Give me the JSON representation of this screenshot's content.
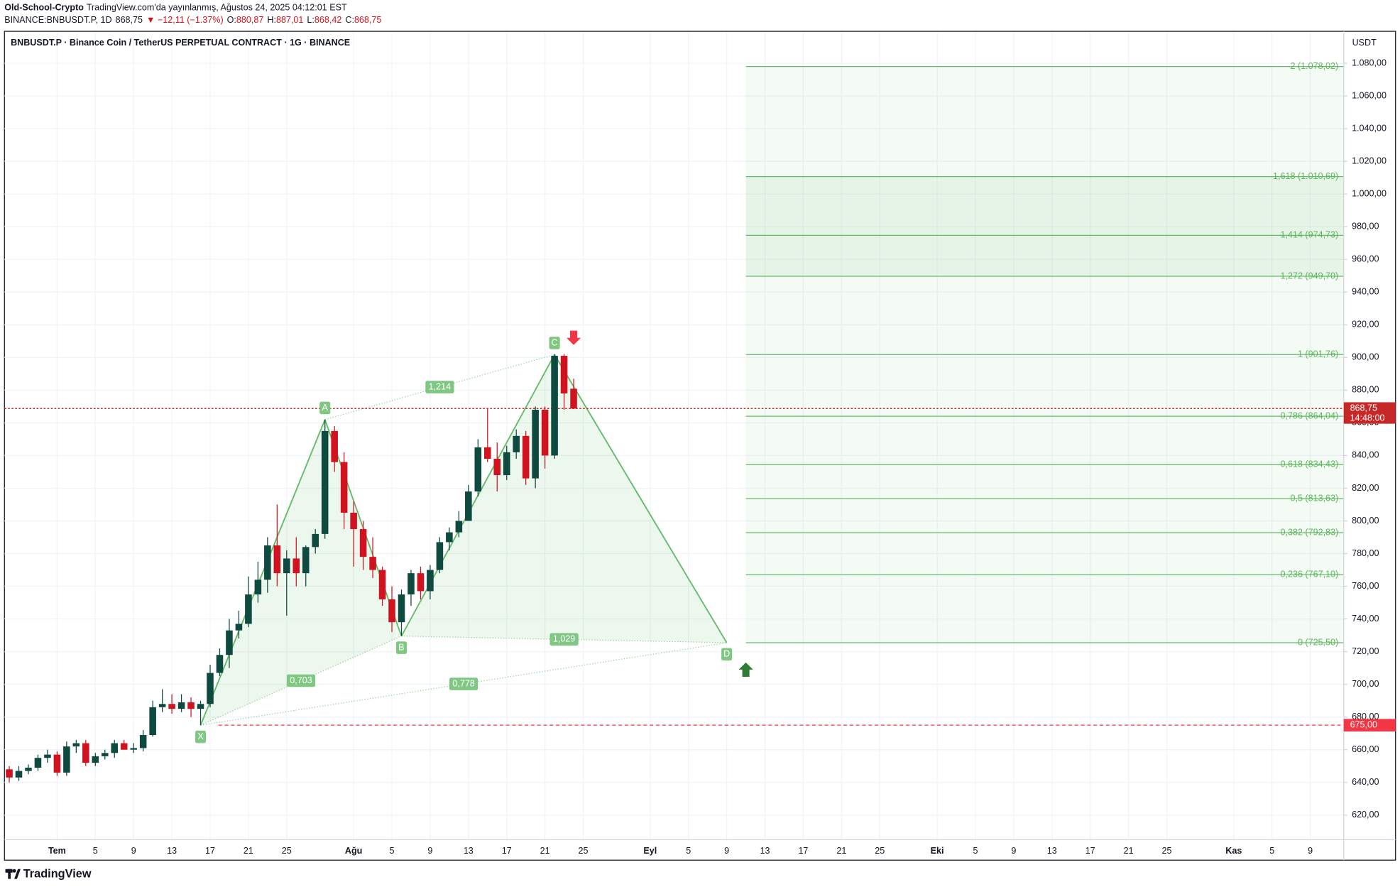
{
  "header": {
    "author": "Old-School-Crypto",
    "published": "TradingView.com'da yayınlanmış, Ağustos 24, 2025 04:12:01 EST",
    "symbol": "BINANCE:BNBUSDT.P, 1D",
    "price": "868,75",
    "change": "▼ −12,11 (−1.37%)",
    "ohlc": [
      {
        "k": "O:",
        "v": "880,87"
      },
      {
        "k": "H:",
        "v": "887,01"
      },
      {
        "k": "L:",
        "v": "868,42"
      },
      {
        "k": "C:",
        "v": "868,75"
      }
    ]
  },
  "logo": "TradingView",
  "chart_data": {
    "type": "candlestick",
    "title": "BNBUSDT.P · Binance Coin / TetherUS PERPETUAL CONTRACT · 1G · BINANCE",
    "y_axis_label": "USDT",
    "up_color": "#0e4a3f",
    "down_color": "#d1131f",
    "grid": true,
    "xlim": [
      "2025-06-26",
      "2025-11-12"
    ],
    "ylim": [
      605,
      1099
    ],
    "yticks": [
      {
        "value": 620,
        "label": "620,00"
      },
      {
        "value": 640,
        "label": "640,00"
      },
      {
        "value": 660,
        "label": "660,00"
      },
      {
        "value": 680,
        "label": "680,00"
      },
      {
        "value": 700,
        "label": "700,00"
      },
      {
        "value": 720,
        "label": "720,00"
      },
      {
        "value": 740,
        "label": "740,00"
      },
      {
        "value": 760,
        "label": "760,00"
      },
      {
        "value": 780,
        "label": "780,00"
      },
      {
        "value": 800,
        "label": "800,00"
      },
      {
        "value": 820,
        "label": "820,00"
      },
      {
        "value": 840,
        "label": "840,00"
      },
      {
        "value": 860,
        "label": "860,00"
      },
      {
        "value": 880,
        "label": "880,00"
      },
      {
        "value": 900,
        "label": "900,00"
      },
      {
        "value": 920,
        "label": "920,00"
      },
      {
        "value": 940,
        "label": "940,00"
      },
      {
        "value": 960,
        "label": "960,00"
      },
      {
        "value": 980,
        "label": "980,00"
      },
      {
        "value": 1000,
        "label": "1.000,00"
      },
      {
        "value": 1020,
        "label": "1.020,00"
      },
      {
        "value": 1040,
        "label": "1.040,00"
      },
      {
        "value": 1060,
        "label": "1.060,00"
      },
      {
        "value": 1080,
        "label": "1.080,00"
      }
    ],
    "xticks": [
      {
        "value": "2025-07-01",
        "label": "Tem"
      },
      {
        "value": "2025-07-05",
        "label": "5"
      },
      {
        "value": "2025-07-09",
        "label": "9"
      },
      {
        "value": "2025-07-13",
        "label": "13"
      },
      {
        "value": "2025-07-17",
        "label": "17"
      },
      {
        "value": "2025-07-21",
        "label": "21"
      },
      {
        "value": "2025-07-25",
        "label": "25"
      },
      {
        "value": "2025-08-01",
        "label": "Ağu"
      },
      {
        "value": "2025-08-05",
        "label": "5"
      },
      {
        "value": "2025-08-09",
        "label": "9"
      },
      {
        "value": "2025-08-13",
        "label": "13"
      },
      {
        "value": "2025-08-17",
        "label": "17"
      },
      {
        "value": "2025-08-21",
        "label": "21"
      },
      {
        "value": "2025-08-25",
        "label": "25"
      },
      {
        "value": "2025-09-01",
        "label": "Eyl"
      },
      {
        "value": "2025-09-05",
        "label": "5"
      },
      {
        "value": "2025-09-09",
        "label": "9"
      },
      {
        "value": "2025-09-13",
        "label": "13"
      },
      {
        "value": "2025-09-17",
        "label": "17"
      },
      {
        "value": "2025-09-21",
        "label": "21"
      },
      {
        "value": "2025-09-25",
        "label": "25"
      },
      {
        "value": "2025-10-01",
        "label": "Eki"
      },
      {
        "value": "2025-10-05",
        "label": "5"
      },
      {
        "value": "2025-10-09",
        "label": "9"
      },
      {
        "value": "2025-10-13",
        "label": "13"
      },
      {
        "value": "2025-10-17",
        "label": "17"
      },
      {
        "value": "2025-10-21",
        "label": "21"
      },
      {
        "value": "2025-10-25",
        "label": "25"
      },
      {
        "value": "2025-11-01",
        "label": "Kas"
      },
      {
        "value": "2025-11-05",
        "label": "5"
      },
      {
        "value": "2025-11-09",
        "label": "9"
      }
    ],
    "x": [
      "2025-06-26",
      "2025-06-27",
      "2025-06-28",
      "2025-06-29",
      "2025-06-30",
      "2025-07-01",
      "2025-07-02",
      "2025-07-03",
      "2025-07-04",
      "2025-07-05",
      "2025-07-06",
      "2025-07-07",
      "2025-07-08",
      "2025-07-09",
      "2025-07-10",
      "2025-07-11",
      "2025-07-12",
      "2025-07-13",
      "2025-07-14",
      "2025-07-15",
      "2025-07-16",
      "2025-07-17",
      "2025-07-18",
      "2025-07-19",
      "2025-07-20",
      "2025-07-21",
      "2025-07-22",
      "2025-07-23",
      "2025-07-24",
      "2025-07-25",
      "2025-07-26",
      "2025-07-27",
      "2025-07-28",
      "2025-07-29",
      "2025-07-30",
      "2025-07-31",
      "2025-08-01",
      "2025-08-02",
      "2025-08-03",
      "2025-08-04",
      "2025-08-05",
      "2025-08-06",
      "2025-08-07",
      "2025-08-08",
      "2025-08-09",
      "2025-08-10",
      "2025-08-11",
      "2025-08-12",
      "2025-08-13",
      "2025-08-14",
      "2025-08-15",
      "2025-08-16",
      "2025-08-17",
      "2025-08-18",
      "2025-08-19",
      "2025-08-20",
      "2025-08-21",
      "2025-08-22",
      "2025-08-23",
      "2025-08-24"
    ],
    "open": [
      648,
      643,
      647,
      649,
      655,
      657,
      646,
      662,
      664,
      652,
      656,
      658,
      664,
      660,
      661,
      669,
      686,
      688,
      685,
      689,
      685,
      688,
      707,
      718,
      733,
      737,
      755,
      764,
      785,
      768,
      777,
      768,
      784,
      792,
      855,
      836,
      805,
      795,
      778,
      770,
      752,
      738,
      755,
      768,
      757,
      770,
      787,
      793,
      800,
      818,
      845,
      838,
      828,
      842,
      852,
      826,
      868,
      840,
      901,
      880.87
    ],
    "high": [
      650,
      650,
      651,
      657,
      660,
      659,
      665,
      666,
      666,
      658,
      660,
      666,
      666,
      664,
      672,
      690,
      697,
      694,
      694,
      692,
      690,
      712,
      722,
      740,
      745,
      766,
      775,
      790,
      810,
      782,
      790,
      785,
      795,
      862,
      858,
      842,
      812,
      800,
      790,
      772,
      760,
      758,
      770,
      772,
      773,
      790,
      796,
      806,
      822,
      850,
      869,
      848,
      846,
      856,
      855,
      870,
      870,
      902,
      902,
      887.01
    ],
    "low": [
      640,
      641,
      645,
      647,
      652,
      644,
      644,
      658,
      650,
      650,
      654,
      655,
      660,
      658,
      659,
      668,
      683,
      682,
      683,
      680,
      675,
      686,
      705,
      710,
      728,
      735,
      750,
      756,
      760,
      742,
      760,
      760,
      780,
      789,
      830,
      795,
      772,
      770,
      765,
      748,
      732,
      729.5,
      748,
      752,
      752,
      768,
      782,
      790,
      800,
      815,
      836,
      818,
      825,
      838,
      822,
      820,
      832,
      838,
      868,
      868.42
    ],
    "close": [
      643,
      647,
      649,
      655,
      657,
      646,
      662,
      664,
      652,
      656,
      658,
      664,
      660,
      661,
      669,
      686,
      688,
      685,
      689,
      685,
      688,
      707,
      718,
      733,
      737,
      755,
      764,
      785,
      768,
      777,
      768,
      784,
      792,
      855,
      836,
      805,
      795,
      778,
      770,
      752,
      738,
      755,
      768,
      757,
      770,
      787,
      793,
      800,
      818,
      845,
      838,
      828,
      842,
      852,
      826,
      868,
      840,
      901,
      878,
      868.75
    ],
    "last_price": {
      "value": 868.75,
      "label": "868,75",
      "countdown": "14:48:00",
      "color": "#c62828"
    },
    "stop": {
      "value": 675,
      "label": "675,00",
      "color": "#f23645"
    },
    "pattern": {
      "color": "#66bb6a",
      "fill": "rgba(102,187,106,0.12)",
      "points": [
        {
          "label": "X",
          "date": "2025-07-16",
          "price": 675,
          "side": "below"
        },
        {
          "label": "A",
          "date": "2025-07-29",
          "price": 862,
          "side": "above"
        },
        {
          "label": "B",
          "date": "2025-08-06",
          "price": 729.5,
          "side": "below"
        },
        {
          "label": "C",
          "date": "2025-08-22",
          "price": 901.76,
          "side": "above"
        },
        {
          "label": "D",
          "date": "2025-09-09",
          "price": 725.5,
          "side": "below"
        }
      ],
      "ratios": [
        {
          "from": 0,
          "to": 2,
          "value": 0.703,
          "label": "0,703"
        },
        {
          "from": 1,
          "to": 3,
          "value": 1.214,
          "label": "1,214"
        },
        {
          "from": 2,
          "to": 4,
          "value": 1.029,
          "label": "1,029"
        },
        {
          "from": 0,
          "to": 4,
          "value": 0.778,
          "label": "0,778"
        }
      ]
    },
    "fib": {
      "start": "2025-09-11",
      "color": "#66bb6a",
      "text_color": "#5cb85c",
      "levels": [
        {
          "ratio": 0,
          "price": 725.5,
          "label": "0 (725,50)",
          "fill": "rgba(102,187,106,0.07)"
        },
        {
          "ratio": 0.236,
          "price": 767.1,
          "label": "0,236 (767,10)",
          "fill": "rgba(102,187,106,0.07)"
        },
        {
          "ratio": 0.382,
          "price": 792.83,
          "label": "0,382 (792,83)",
          "fill": "rgba(102,187,106,0.07)"
        },
        {
          "ratio": 0.5,
          "price": 813.63,
          "label": "0,5 (813,63)",
          "fill": "rgba(102,187,106,0.07)"
        },
        {
          "ratio": 0.618,
          "price": 834.43,
          "label": "0,618 (834,43)",
          "fill": "rgba(102,187,106,0.07)"
        },
        {
          "ratio": 0.786,
          "price": 864.04,
          "label": "0,786 (864,04)",
          "fill": "rgba(102,187,106,0.07)"
        },
        {
          "ratio": 1,
          "price": 901.76,
          "label": "1 (901,76)",
          "fill": "rgba(102,187,106,0.07)"
        },
        {
          "ratio": 1.272,
          "price": 949.7,
          "label": "1,272 (949,70)",
          "fill": "rgba(102,187,106,0.16)"
        },
        {
          "ratio": 1.414,
          "price": 974.73,
          "label": "1,414 (974,73)",
          "fill": "rgba(102,187,106,0.16)"
        },
        {
          "ratio": 1.618,
          "price": 1010.69,
          "label": "1,618 (1.010,69)",
          "fill": "rgba(102,187,106,0.07)"
        },
        {
          "ratio": 2,
          "price": 1078.02,
          "label": "2 (1.078,02)"
        }
      ]
    },
    "signals": [
      {
        "date": "2025-08-24",
        "price": 912,
        "direction": "down",
        "color": "#f23645"
      },
      {
        "date": "2025-09-11",
        "price": 709,
        "direction": "up",
        "color": "#2e7d32"
      }
    ]
  }
}
